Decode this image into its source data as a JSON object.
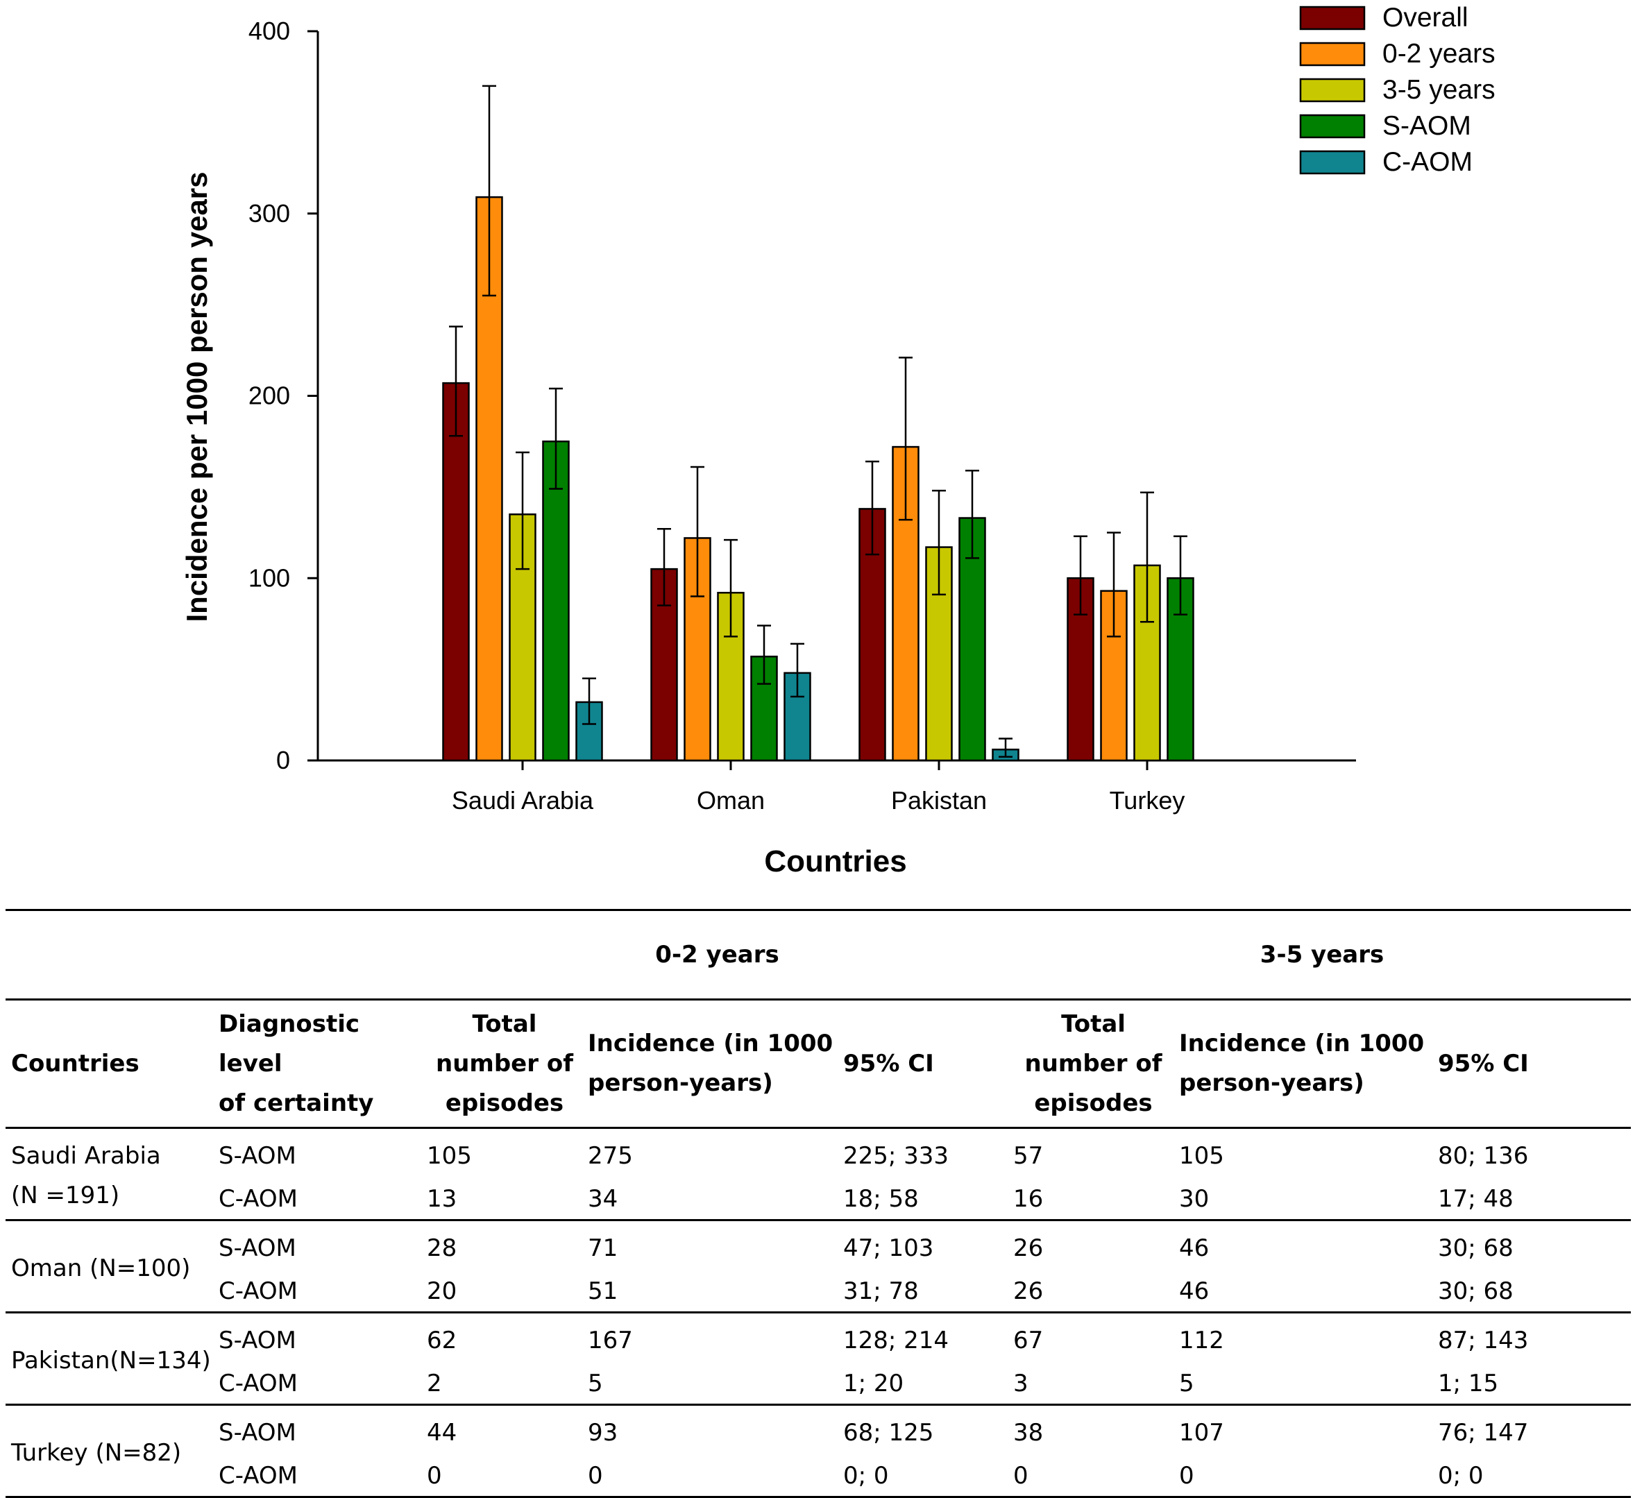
{
  "chart_data": {
    "type": "bar",
    "title": "",
    "xlabel": "Countries",
    "ylabel": "Incidence per 1000 person years",
    "ylim": [
      0,
      400
    ],
    "yticks": [
      0,
      100,
      200,
      300,
      400
    ],
    "legend_position": "top-right",
    "categories": [
      "Saudi Arabia",
      "Oman",
      "Pakistan",
      "Turkey"
    ],
    "series": [
      {
        "name": "Overall",
        "color": "#7b0000",
        "values": [
          207,
          105,
          138,
          100
        ],
        "err_low": [
          178,
          85,
          113,
          80
        ],
        "err_high": [
          238,
          127,
          164,
          123
        ]
      },
      {
        "name": "0-2 years",
        "color": "#ff8c0a",
        "values": [
          309,
          122,
          172,
          93
        ],
        "err_low": [
          255,
          90,
          132,
          68
        ],
        "err_high": [
          370,
          161,
          221,
          125
        ]
      },
      {
        "name": "3-5 years",
        "color": "#c8c800",
        "values": [
          135,
          92,
          117,
          107
        ],
        "err_low": [
          105,
          68,
          91,
          76
        ],
        "err_high": [
          169,
          121,
          148,
          147
        ]
      },
      {
        "name": "S-AOM",
        "color": "#008000",
        "values": [
          175,
          57,
          133,
          100
        ],
        "err_low": [
          149,
          42,
          111,
          80
        ],
        "err_high": [
          204,
          74,
          159,
          123
        ]
      },
      {
        "name": "C-AOM",
        "color": "#108590",
        "values": [
          32,
          48,
          6,
          null
        ],
        "err_low": [
          20,
          35,
          2,
          null
        ],
        "err_high": [
          45,
          64,
          12,
          null
        ]
      }
    ]
  },
  "table": {
    "groups": [
      "0-2 years",
      "3-5 years"
    ],
    "headers": {
      "country": "Countries",
      "diag": [
        "Diagnostic level",
        "of certainty"
      ],
      "episodes": [
        "Total",
        "number of",
        "episodes"
      ],
      "incidence": [
        "Incidence (in 1000",
        "person-years)"
      ],
      "ci": "95% CI"
    },
    "rows": [
      {
        "country": [
          "Saudi Arabia",
          "(N =191)"
        ],
        "lines": [
          {
            "diag": "S-AOM",
            "ep1": "105",
            "inc1": "275",
            "ci1": "225; 333",
            "ep2": "57",
            "inc2": "105",
            "ci2": "80; 136"
          },
          {
            "diag": "C-AOM",
            "ep1": "13",
            "inc1": "34",
            "ci1": "18; 58",
            "ep2": "16",
            "inc2": "30",
            "ci2": "17; 48"
          }
        ]
      },
      {
        "country": [
          "Oman (N=100)"
        ],
        "lines": [
          {
            "diag": "S-AOM",
            "ep1": "28",
            "inc1": "71",
            "ci1": "47; 103",
            "ep2": "26",
            "inc2": "46",
            "ci2": "30; 68"
          },
          {
            "diag": "C-AOM",
            "ep1": "20",
            "inc1": "51",
            "ci1": "31; 78",
            "ep2": "26",
            "inc2": "46",
            "ci2": "30; 68"
          }
        ]
      },
      {
        "country": [
          "Pakistan(N=134)"
        ],
        "lines": [
          {
            "diag": "S-AOM",
            "ep1": "62",
            "inc1": "167",
            "ci1": "128; 214",
            "ep2": "67",
            "inc2": "112",
            "ci2": "87; 143"
          },
          {
            "diag": "C-AOM",
            "ep1": "2",
            "inc1": "5",
            "ci1": "1; 20",
            "ep2": "3",
            "inc2": "5",
            "ci2": "1; 15"
          }
        ]
      },
      {
        "country": [
          "Turkey (N=82)"
        ],
        "lines": [
          {
            "diag": "S-AOM",
            "ep1": "44",
            "inc1": "93",
            "ci1": "68; 125",
            "ep2": "38",
            "inc2": "107",
            "ci2": "76; 147"
          },
          {
            "diag": "C-AOM",
            "ep1": "0",
            "inc1": "0",
            "ci1": "0; 0",
            "ep2": "0",
            "inc2": "0",
            "ci2": "0; 0"
          }
        ]
      }
    ]
  }
}
